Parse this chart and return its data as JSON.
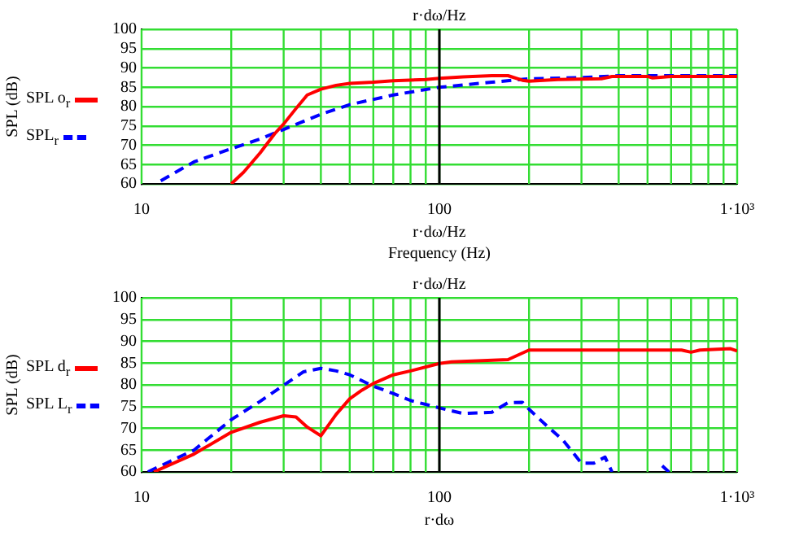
{
  "chart_data": [
    {
      "type": "line",
      "ylabel": "SPL (dB)",
      "xlabel": "Frequency (Hz)",
      "annotations": [
        "r·dω/Hz"
      ],
      "log": "x",
      "grid": true,
      "legend": "left",
      "marker": "none",
      "xlim": [
        10,
        1000
      ],
      "ylim": [
        60,
        100
      ],
      "xticks": [
        {
          "value": 10,
          "label": "10"
        },
        {
          "value": 20,
          "label": null
        },
        {
          "value": 30,
          "label": null
        },
        {
          "value": 40,
          "label": null
        },
        {
          "value": 50,
          "label": null
        },
        {
          "value": 60,
          "label": null
        },
        {
          "value": 70,
          "label": null
        },
        {
          "value": 80,
          "label": null
        },
        {
          "value": 90,
          "label": null
        },
        {
          "value": 100,
          "label": "100"
        },
        {
          "value": 200,
          "label": null
        },
        {
          "value": 300,
          "label": null
        },
        {
          "value": 400,
          "label": null
        },
        {
          "value": 500,
          "label": null
        },
        {
          "value": 600,
          "label": null
        },
        {
          "value": 700,
          "label": null
        },
        {
          "value": 800,
          "label": null
        },
        {
          "value": 900,
          "label": null
        },
        {
          "value": 1000,
          "label": "1·10³"
        }
      ],
      "yticks": [
        60,
        65,
        70,
        75,
        80,
        85,
        90,
        95,
        100
      ],
      "ref_lines": [
        {
          "axis": "x",
          "value": 100,
          "label": "r·dω/Hz",
          "color": "#000000"
        }
      ],
      "series": [
        {
          "name": "SPL o$_{r}$",
          "color": "#ff0000",
          "line_style": "solid",
          "x": [
            20,
            22,
            25,
            28,
            30,
            33,
            36,
            40,
            45,
            50,
            60,
            70,
            90,
            100,
            120,
            150,
            170,
            190,
            200,
            250,
            350,
            380,
            500,
            520,
            600,
            1000
          ],
          "values": [
            60,
            63,
            68,
            73,
            75.5,
            79.5,
            83,
            84.5,
            85.5,
            86,
            86.3,
            86.7,
            87,
            87.3,
            87.7,
            88,
            88,
            86.8,
            86.6,
            87,
            87.2,
            87.8,
            87.8,
            87.4,
            87.8,
            87.8
          ]
        },
        {
          "name": "SPL$_{r}$",
          "color": "#0000ff",
          "line_style": "dashed",
          "x": [
            11.6,
            15,
            20,
            25,
            30,
            40,
            50,
            70,
            100,
            150,
            200,
            300,
            400,
            1000
          ],
          "values": [
            60.8,
            65.7,
            69.1,
            71.6,
            74.1,
            78,
            80.5,
            83,
            85,
            86.3,
            87.2,
            87.5,
            88,
            88
          ]
        }
      ]
    },
    {
      "type": "line",
      "ylabel": "SPL (dB)",
      "annotations": [
        "r·dω"
      ],
      "log": "x",
      "grid": true,
      "legend": "left",
      "marker": "none",
      "xlim": [
        10,
        1000
      ],
      "ylim": [
        60,
        100
      ],
      "xticks": [
        {
          "value": 10,
          "label": "10"
        },
        {
          "value": 20,
          "label": null
        },
        {
          "value": 30,
          "label": null
        },
        {
          "value": 40,
          "label": null
        },
        {
          "value": 50,
          "label": null
        },
        {
          "value": 60,
          "label": null
        },
        {
          "value": 70,
          "label": null
        },
        {
          "value": 80,
          "label": null
        },
        {
          "value": 90,
          "label": null
        },
        {
          "value": 100,
          "label": "100"
        },
        {
          "value": 200,
          "label": null
        },
        {
          "value": 300,
          "label": null
        },
        {
          "value": 400,
          "label": null
        },
        {
          "value": 500,
          "label": null
        },
        {
          "value": 600,
          "label": null
        },
        {
          "value": 700,
          "label": null
        },
        {
          "value": 800,
          "label": null
        },
        {
          "value": 900,
          "label": null
        },
        {
          "value": 1000,
          "label": "1·10³"
        }
      ],
      "yticks": [
        60,
        65,
        70,
        75,
        80,
        85,
        90,
        95,
        100
      ],
      "ref_lines": [
        {
          "axis": "x",
          "value": 100,
          "label": "r·dω/Hz",
          "color": "#000000"
        }
      ],
      "series": [
        {
          "name": "SPL d$_{r}$",
          "color": "#ff0000",
          "line_style": "solid",
          "x": [
            11,
            15,
            20,
            25,
            30,
            33,
            36,
            40,
            45,
            50,
            55,
            60,
            70,
            80,
            100,
            110,
            170,
            200,
            300,
            650,
            700,
            750,
            950,
            1000
          ],
          "values": [
            60,
            64.1,
            69.1,
            71.4,
            72.9,
            72.6,
            70.3,
            68.3,
            73.2,
            76.8,
            78.8,
            80.3,
            82.3,
            83.2,
            84.9,
            85.3,
            85.8,
            88,
            88,
            88,
            87.5,
            88,
            88.3,
            87.8
          ]
        },
        {
          "name": "SPL L$_{r}$",
          "color": "#0000ff",
          "line_style": "dashed",
          "x": [
            10.5,
            15,
            20,
            25,
            30,
            35,
            40,
            45,
            50,
            60,
            70,
            80,
            100,
            120,
            150,
            170,
            190,
            200,
            230,
            260,
            300,
            330,
            360,
            380,
            450,
            560,
            590
          ],
          "values": [
            60,
            65,
            72,
            76.2,
            79.9,
            83,
            83.8,
            83.2,
            82.3,
            79.7,
            78,
            76.4,
            74.7,
            73.4,
            73.7,
            75.9,
            76,
            74.4,
            70.5,
            67.3,
            62,
            62,
            63.4,
            60,
            null,
            61.4,
            60
          ]
        }
      ]
    }
  ]
}
